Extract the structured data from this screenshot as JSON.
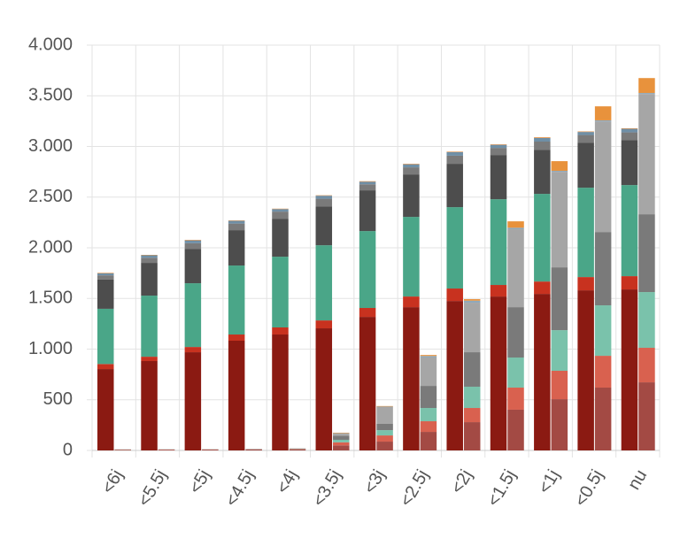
{
  "chart_data": {
    "type": "grouped-stacked-bar",
    "categories": [
      "<6j",
      "<5.5j",
      "<5j",
      "<4.5j",
      "<4j",
      "<3.5j",
      "<3j",
      "<2.5j",
      "<2j",
      "<1.5j",
      "<1j",
      "<0.5j",
      "nu"
    ],
    "ylim": [
      0,
      4000
    ],
    "yticks": [
      0,
      500,
      {
        "value": 1000,
        "label": "1.000"
      },
      {
        "value": 1500,
        "label": "1.500"
      },
      {
        "value": 2000,
        "label": "2.000"
      },
      {
        "value": 2500,
        "label": "2.500"
      },
      {
        "value": 3000,
        "label": "3.000"
      },
      {
        "value": 3500,
        "label": "3.500"
      },
      {
        "value": 4000,
        "label": "4.000"
      }
    ],
    "grid": true,
    "stacks": [
      {
        "series": [
          {
            "color": "#8b1a12",
            "values": [
              803,
              882,
              969,
              1083,
              1144,
              1205,
              1318,
              1414,
              1475,
              1519,
              1545,
              1580,
              1589
            ]
          },
          {
            "color": "#c8321f",
            "values": [
              50,
              43,
              52,
              61,
              70,
              78,
              88,
              105,
              123,
              114,
              122,
              131,
              131
            ]
          },
          {
            "color": "#4aa688",
            "values": [
              545,
              603,
              629,
              681,
              698,
              742,
              759,
              786,
              803,
              846,
              865,
              882,
              899
            ]
          },
          {
            "color": "#4d4d4d",
            "values": [
              290,
              323,
              340,
              349,
              375,
              384,
              402,
              419,
              428,
              437,
              436,
              445,
              445
            ]
          },
          {
            "color": "#7a7a7a",
            "values": [
              40,
              50,
              55,
              65,
              70,
              75,
              60,
              70,
              80,
              70,
              80,
              75,
              75
            ]
          },
          {
            "color": "#6f8fa6",
            "values": [
              20,
              25,
              28,
              27,
              25,
              30,
              25,
              30,
              35,
              30,
              35,
              30,
              35
            ]
          },
          {
            "color": "#e08a3a",
            "values": [
              5,
              4,
              5,
              4,
              4,
              4,
              5,
              5,
              5,
              5,
              7,
              5,
              5
            ]
          }
        ]
      },
      {
        "series": [
          {
            "color": "#a34a44",
            "values": [
              6,
              7,
              8,
              9,
              12,
              50,
              87,
              183,
              279,
              402,
              506,
              620,
              672
            ]
          },
          {
            "color": "#d9614f",
            "values": [
              2,
              2,
              2,
              2,
              3,
              30,
              61,
              105,
              140,
              218,
              280,
              314,
              341
            ]
          },
          {
            "color": "#7ac2ab",
            "values": [
              1,
              1,
              1,
              1,
              2,
              25,
              52,
              131,
              210,
              297,
              401,
              498,
              550
            ]
          },
          {
            "color": "#7a7a7a",
            "values": [
              1,
              1,
              1,
              2,
              2,
              40,
              62,
              218,
              340,
              497,
              620,
              724,
              768
            ]
          },
          {
            "color": "#a6a6a6",
            "values": [
              1,
              1,
              1,
              1,
              2,
              20,
              166,
              280,
              489,
              769,
              943,
              1092,
              1187
            ]
          },
          {
            "color": "#8fa8ba",
            "values": [
              0,
              0,
              0,
              0,
              0,
              5,
              5,
              15,
              20,
              15,
              10,
              10,
              10
            ]
          },
          {
            "color": "#e8923c",
            "values": [
              0,
              0,
              0,
              0,
              0,
              5,
              5,
              10,
              15,
              63,
              95,
              138,
              147
            ]
          }
        ]
      }
    ]
  }
}
